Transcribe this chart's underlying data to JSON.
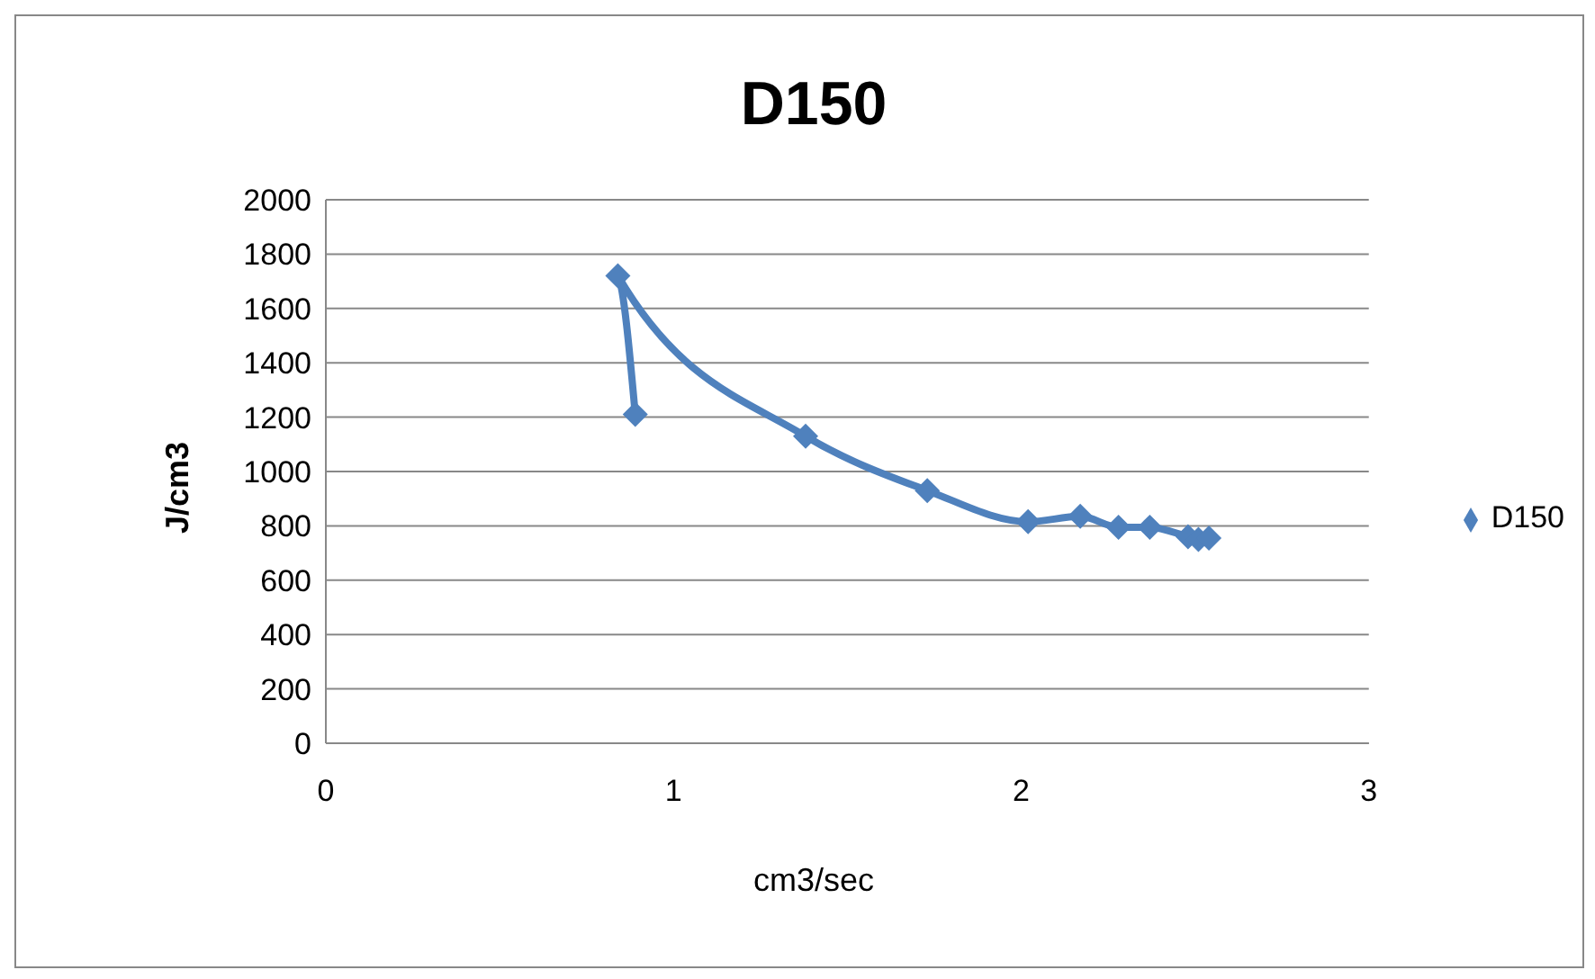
{
  "chart_data": {
    "type": "line",
    "title": "D150",
    "xlabel": "cm3/sec",
    "ylabel": "J/cm3",
    "x": [
      0.89,
      0.84,
      1.38,
      1.73,
      2.02,
      2.17,
      2.28,
      2.37,
      2.48,
      2.51,
      2.54
    ],
    "series": [
      {
        "name": "D150",
        "color": "#4f81bd",
        "values": [
          1210,
          1720,
          1130,
          930,
          815,
          835,
          795,
          795,
          760,
          750,
          755
        ]
      }
    ],
    "xlim": [
      0,
      3
    ],
    "xticks": [
      0,
      1,
      2,
      3
    ],
    "ylim": [
      0,
      2000
    ],
    "yticks": [
      0,
      200,
      400,
      600,
      800,
      1000,
      1200,
      1400,
      1600,
      1800,
      2000
    ],
    "grid": "y",
    "legend": "right",
    "marker": "diamond",
    "line_style": "solid"
  }
}
